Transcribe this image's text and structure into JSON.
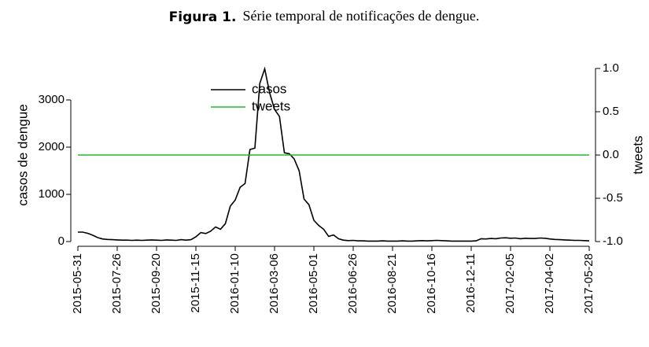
{
  "chart_data": {
    "type": "line",
    "figure_label": "Figura 1.",
    "title": "Série temporal de notificações de dengue.",
    "y_label": "casos de dengue",
    "y2_label": "tweets",
    "legend": "top-center",
    "grid": false,
    "x": [
      "2015-05-31",
      "2015-06-07",
      "2015-06-14",
      "2015-06-21",
      "2015-06-28",
      "2015-07-05",
      "2015-07-12",
      "2015-07-19",
      "2015-07-26",
      "2015-08-02",
      "2015-08-09",
      "2015-08-16",
      "2015-08-23",
      "2015-08-30",
      "2015-09-06",
      "2015-09-13",
      "2015-09-20",
      "2015-09-27",
      "2015-10-04",
      "2015-10-11",
      "2015-10-18",
      "2015-10-25",
      "2015-11-01",
      "2015-11-08",
      "2015-11-15",
      "2015-11-22",
      "2015-11-29",
      "2015-12-06",
      "2015-12-13",
      "2015-12-20",
      "2015-12-27",
      "2016-01-03",
      "2016-01-10",
      "2016-01-17",
      "2016-01-24",
      "2016-01-31",
      "2016-02-07",
      "2016-02-14",
      "2016-02-21",
      "2016-02-28",
      "2016-03-06",
      "2016-03-13",
      "2016-03-20",
      "2016-03-27",
      "2016-04-03",
      "2016-04-10",
      "2016-04-17",
      "2016-04-24",
      "2016-05-01",
      "2016-05-08",
      "2016-05-15",
      "2016-05-22",
      "2016-05-29",
      "2016-06-05",
      "2016-06-12",
      "2016-06-19",
      "2016-06-26",
      "2016-07-03",
      "2016-07-10",
      "2016-07-17",
      "2016-07-24",
      "2016-07-31",
      "2016-08-07",
      "2016-08-14",
      "2016-08-21",
      "2016-08-28",
      "2016-09-04",
      "2016-09-11",
      "2016-09-18",
      "2016-09-25",
      "2016-10-02",
      "2016-10-09",
      "2016-10-16",
      "2016-10-23",
      "2016-10-30",
      "2016-11-06",
      "2016-11-13",
      "2016-11-20",
      "2016-11-27",
      "2016-12-04",
      "2016-12-11",
      "2016-12-18",
      "2016-12-25",
      "2017-01-01",
      "2017-01-08",
      "2017-01-15",
      "2017-01-22",
      "2017-01-29",
      "2017-02-05",
      "2017-02-12",
      "2017-02-19",
      "2017-02-26",
      "2017-03-05",
      "2017-03-12",
      "2017-03-19",
      "2017-03-26",
      "2017-04-02",
      "2017-04-09",
      "2017-04-16",
      "2017-04-23",
      "2017-04-30",
      "2017-05-07",
      "2017-05-14",
      "2017-05-21",
      "2017-05-28"
    ],
    "xticks": [
      "2015-05-31",
      "2015-07-26",
      "2015-09-20",
      "2015-11-15",
      "2016-01-10",
      "2016-03-06",
      "2016-05-01",
      "2016-06-26",
      "2016-08-21",
      "2016-10-16",
      "2016-12-11",
      "2017-02-05",
      "2017-04-02",
      "2017-05-28"
    ],
    "ylim": [
      0,
      3667
    ],
    "yticks": [
      0,
      1000,
      2000,
      3000
    ],
    "y2lim": [
      -1,
      1
    ],
    "y2ticks": [
      {
        "value": 1,
        "label": "1.0"
      },
      {
        "value": 0.5,
        "label": "0.5"
      },
      {
        "value": 0,
        "label": "0.0"
      },
      {
        "value": -0.5,
        "label": "-0.5"
      },
      {
        "value": -1,
        "label": "-1.0"
      }
    ],
    "series": [
      {
        "name": "casos",
        "color": "#000000",
        "values": [
          200,
          200,
          175,
          135,
          85,
          55,
          45,
          40,
          35,
          30,
          30,
          25,
          30,
          25,
          30,
          35,
          30,
          25,
          35,
          30,
          25,
          40,
          30,
          40,
          100,
          190,
          170,
          220,
          310,
          260,
          380,
          750,
          880,
          1150,
          1230,
          1950,
          1980,
          3350,
          3660,
          3150,
          2800,
          2650,
          1880,
          1860,
          1750,
          1500,
          900,
          780,
          450,
          340,
          260,
          110,
          140,
          60,
          30,
          20,
          25,
          15,
          15,
          10,
          10,
          10,
          15,
          10,
          10,
          10,
          15,
          10,
          10,
          15,
          20,
          15,
          20,
          25,
          20,
          15,
          10,
          10,
          10,
          10,
          10,
          15,
          60,
          55,
          65,
          60,
          75,
          80,
          70,
          75,
          60,
          70,
          65,
          65,
          75,
          70,
          55,
          45,
          40,
          35,
          30,
          25,
          25,
          20,
          15
        ]
      },
      {
        "name": "tweets",
        "color": "#22bb22",
        "axis": "y2",
        "values": [
          0,
          0,
          0,
          0,
          0,
          0,
          0,
          0,
          0,
          0,
          0,
          0,
          0,
          0,
          0,
          0,
          0,
          0,
          0,
          0,
          0,
          0,
          0,
          0,
          0,
          0,
          0,
          0,
          0,
          0,
          0,
          0,
          0,
          0,
          0,
          0,
          0,
          0,
          0,
          0,
          0,
          0,
          0,
          0,
          0,
          0,
          0,
          0,
          0,
          0,
          0,
          0,
          0,
          0,
          0,
          0,
          0,
          0,
          0,
          0,
          0,
          0,
          0,
          0,
          0,
          0,
          0,
          0,
          0,
          0,
          0,
          0,
          0,
          0,
          0,
          0,
          0,
          0,
          0,
          0,
          0,
          0,
          0,
          0,
          0,
          0,
          0,
          0,
          0,
          0,
          0,
          0,
          0,
          0,
          0,
          0,
          0,
          0,
          0,
          0,
          0,
          0,
          0,
          0,
          0
        ]
      }
    ]
  }
}
